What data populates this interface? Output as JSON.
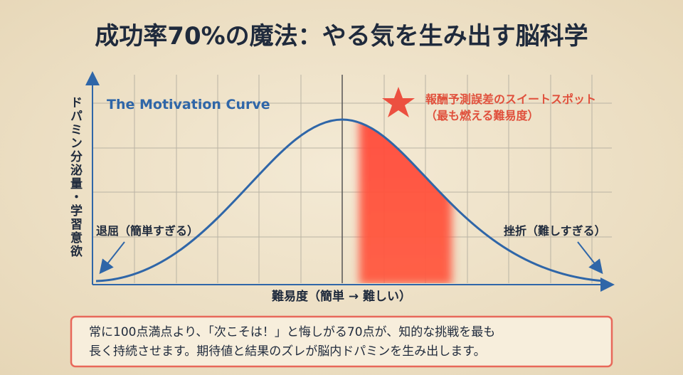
{
  "title": "成功率70%の魔法：やる気を生み出す脳科学",
  "diagram": {
    "y_axis_label": "ドパミン分泌量・学習意欲",
    "x_axis_label": "難易度（簡単 → 難しい）",
    "curve_label": "The Motivation Curve",
    "sweet_spot": {
      "label": "報酬予測誤差のスイートスポット",
      "sublabel": "（最も燃える難易度）"
    },
    "left_note": "退屈（簡単すぎる）",
    "right_note": "挫折（難しすぎる）"
  },
  "caption": {
    "lines": [
      "常に100点満点より、「次こそは！」と悔しがる70点が、知的な挑戦を最も",
      "長く持続させます。期待値と結果のズレが脳内ドパミンを生み出します。"
    ]
  }
}
